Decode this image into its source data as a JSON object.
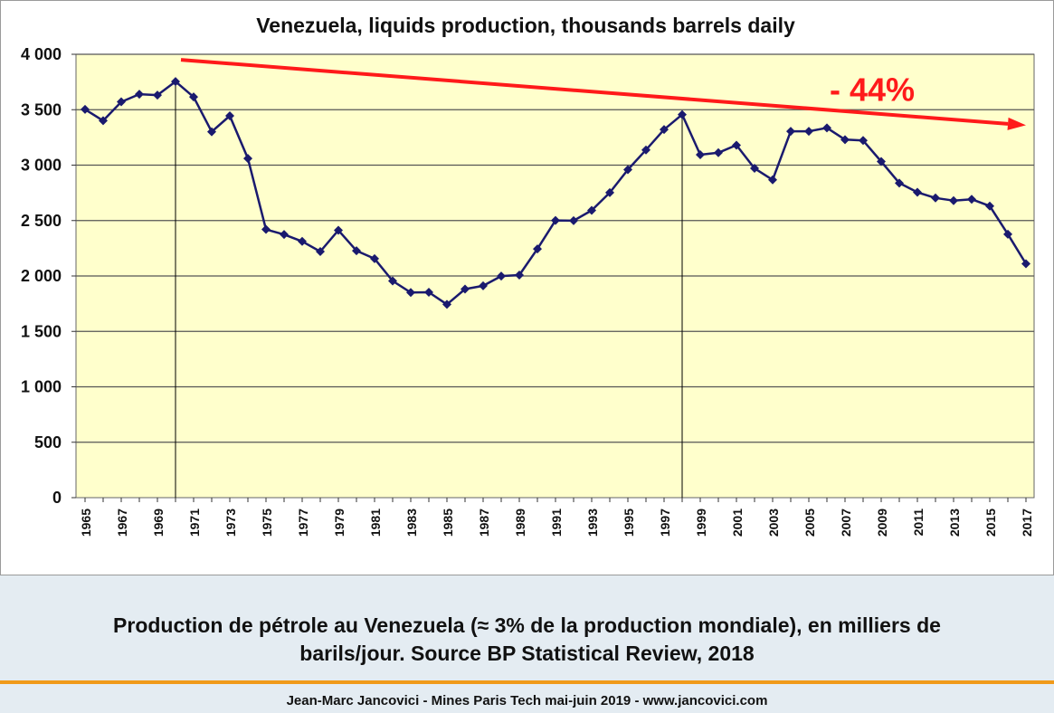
{
  "chart_data": {
    "type": "line",
    "title": "Venezuela, liquids production, thousands barrels daily",
    "x": [
      1965,
      1966,
      1967,
      1968,
      1969,
      1970,
      1971,
      1972,
      1973,
      1974,
      1975,
      1976,
      1977,
      1978,
      1979,
      1980,
      1981,
      1982,
      1983,
      1984,
      1985,
      1986,
      1987,
      1988,
      1989,
      1990,
      1991,
      1992,
      1993,
      1994,
      1995,
      1996,
      1997,
      1998,
      1999,
      2000,
      2001,
      2002,
      2003,
      2004,
      2005,
      2006,
      2007,
      2008,
      2009,
      2010,
      2011,
      2012,
      2013,
      2014,
      2015,
      2016,
      2017
    ],
    "series": [
      {
        "values": [
          3503,
          3401,
          3571,
          3640,
          3632,
          3754,
          3615,
          3301,
          3445,
          3060,
          2420,
          2374,
          2312,
          2220,
          2412,
          2228,
          2156,
          1955,
          1851,
          1853,
          1744,
          1882,
          1911,
          1999,
          2008,
          2244,
          2501,
          2499,
          2592,
          2752,
          2959,
          3137,
          3321,
          3456,
          3094,
          3112,
          3180,
          2971,
          2867,
          3305,
          3305,
          3336,
          3230,
          3222,
          3033,
          2838,
          2755,
          2704,
          2680,
          2692,
          2631,
          2377,
          2110
        ]
      }
    ],
    "xtick_labels": [
      "1965",
      "1967",
      "1969",
      "1971",
      "1973",
      "1975",
      "1977",
      "1979",
      "1981",
      "1983",
      "1985",
      "1987",
      "1989",
      "1991",
      "1993",
      "1995",
      "1997",
      "1999",
      "2001",
      "2003",
      "2005",
      "2007",
      "2009",
      "2011",
      "2013",
      "2015",
      "2017"
    ],
    "ytick_labels": [
      "0",
      "500",
      "1 000",
      "1 500",
      "2 000",
      "2 500",
      "3 000",
      "3 500",
      "4 000"
    ],
    "ylim": [
      0,
      4000
    ],
    "ytick_step": 500,
    "grid": true,
    "annotations": [
      {
        "text": "- 44%",
        "color": "#ff1a1a"
      }
    ],
    "trend_arrow": {
      "x_start": 1970.3,
      "y_start": 3950,
      "x_end": 2017,
      "y_end": 3360,
      "color": "#ff1a1a"
    },
    "vertical_markers": [
      1970,
      1998
    ],
    "colors": {
      "line": "#1a1a6e",
      "plot_background": "#ffffcc",
      "grid": "#555555"
    }
  },
  "caption": "Production de pétrole au Venezuela (≈ 3% de la production mondiale), en milliers de baril s/jour. Source BP Statistical Review, 2018",
  "caption_line1": "Production de pétrole au Venezuela (≈ 3% de la production mondiale), en milliers de",
  "caption_line2": "barils/jour. Source BP Statistical Review, 2018",
  "credit": "Jean-Marc Jancovici - Mines Paris Tech mai-juin 2019 - www.jancovici.com"
}
